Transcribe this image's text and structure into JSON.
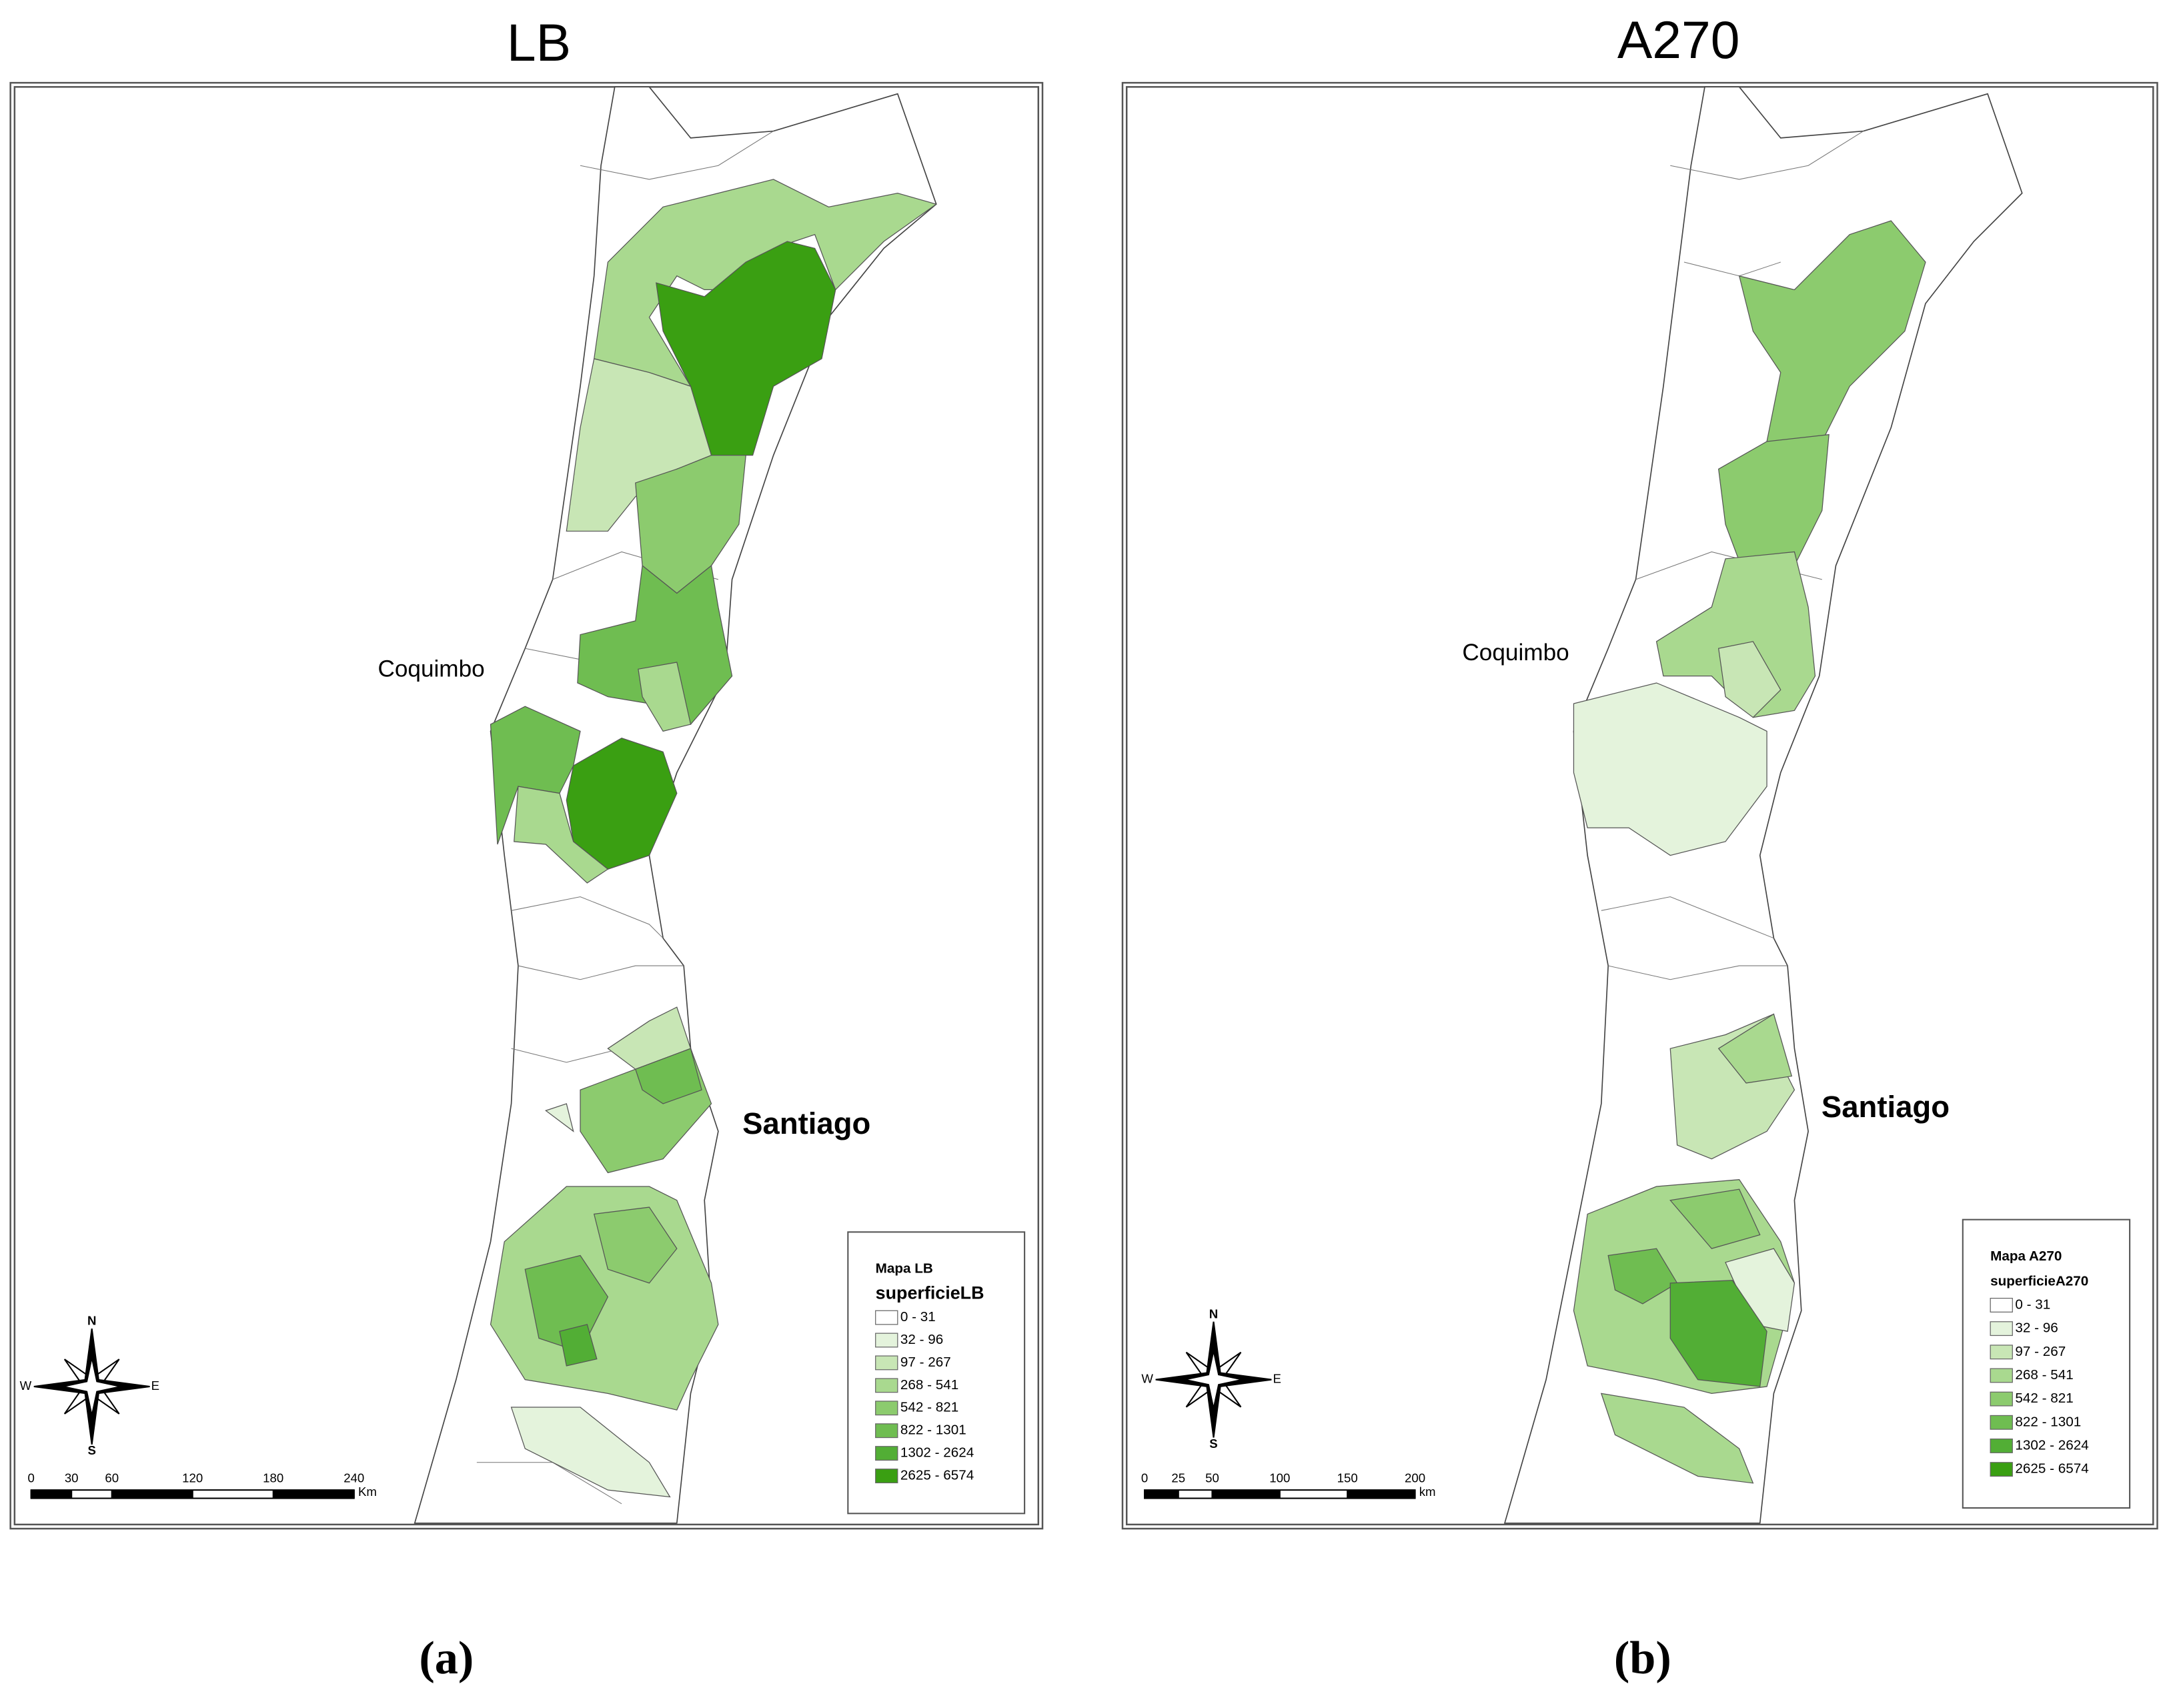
{
  "panels": [
    {
      "title": "LB",
      "caption": "(a)",
      "places": [
        "Coquimbo",
        "Santiago"
      ],
      "legend": {
        "title": "Mapa LB",
        "field": "superficieLB",
        "classes": [
          {
            "label": "0 - 31",
            "color": "#ffffff"
          },
          {
            "label": "32 - 96",
            "color": "#e4f3dc"
          },
          {
            "label": "97 - 267",
            "color": "#c8e6b5"
          },
          {
            "label": "268 - 541",
            "color": "#a9d98f"
          },
          {
            "label": "542 - 821",
            "color": "#8ccb6e"
          },
          {
            "label": "822 - 1301",
            "color": "#6fbd51"
          },
          {
            "label": "1302 - 2624",
            "color": "#52ae35"
          },
          {
            "label": "2625 - 6574",
            "color": "#3a9f12"
          }
        ]
      },
      "compass": {
        "north": "N",
        "south": "S",
        "east": "E",
        "west": "W"
      },
      "scale": {
        "ticks": [
          0,
          30,
          60,
          120,
          180,
          240
        ],
        "unit": "Km"
      }
    },
    {
      "title": "A270",
      "caption": "(b)",
      "places": [
        "Coquimbo",
        "Santiago"
      ],
      "legend": {
        "title": "Mapa A270",
        "field": "superficieA270",
        "classes": [
          {
            "label": "0 - 31",
            "color": "#ffffff"
          },
          {
            "label": "32 - 96",
            "color": "#e4f3dc"
          },
          {
            "label": "97 - 267",
            "color": "#c8e6b5"
          },
          {
            "label": "268 - 541",
            "color": "#a9d98f"
          },
          {
            "label": "542 - 821",
            "color": "#8ccb6e"
          },
          {
            "label": "822 - 1301",
            "color": "#6fbd51"
          },
          {
            "label": "1302 - 2624",
            "color": "#52ae35"
          },
          {
            "label": "2625 - 6574",
            "color": "#3a9f12"
          }
        ]
      },
      "compass": {
        "north": "N",
        "south": "S",
        "east": "E",
        "west": "W"
      },
      "scale": {
        "ticks": [
          0,
          25,
          50,
          100,
          150,
          200
        ],
        "unit": "km"
      }
    }
  ]
}
